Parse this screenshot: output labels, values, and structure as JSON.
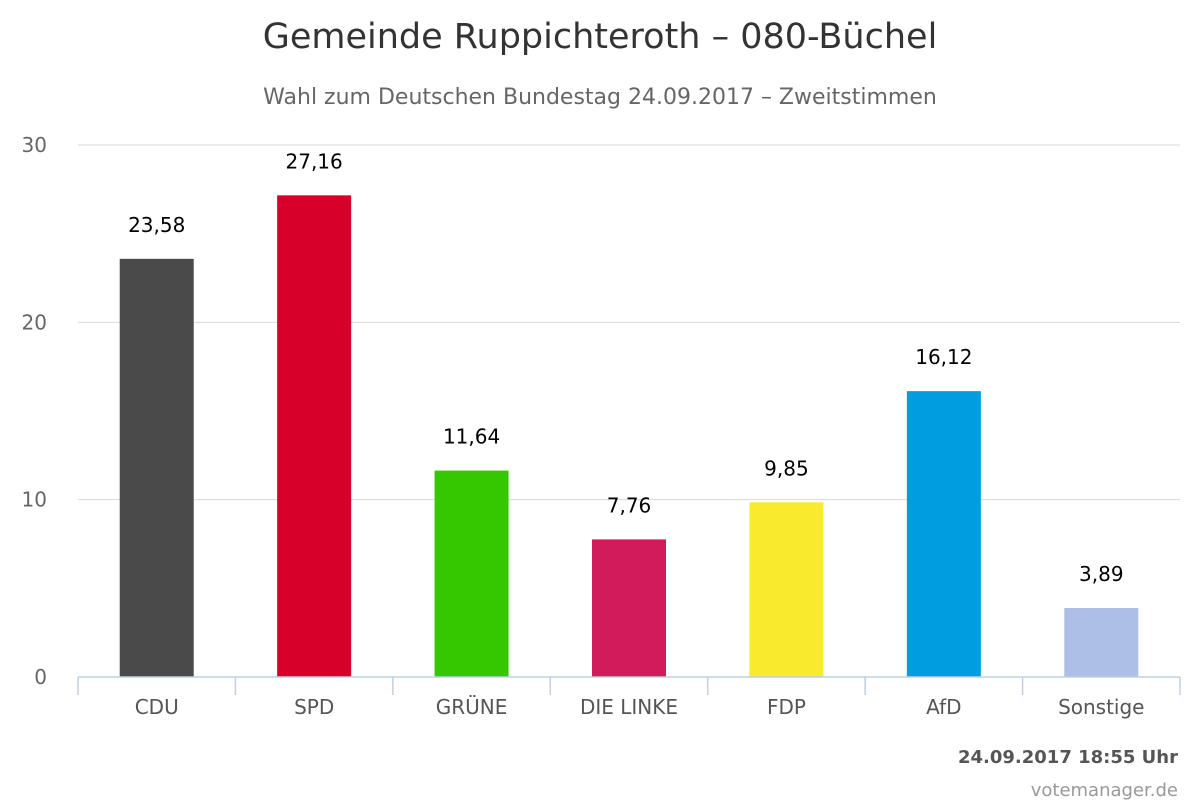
{
  "chart_data": {
    "type": "bar",
    "title": "Gemeinde Ruppichteroth – 080-Büchel",
    "subtitle": "Wahl zum Deutschen Bundestag 24.09.2017 – Zweitstimmen",
    "categories": [
      "CDU",
      "SPD",
      "GRÜNE",
      "DIE LINKE",
      "FDP",
      "AfD",
      "Sonstige"
    ],
    "values": [
      23.58,
      27.16,
      11.64,
      7.76,
      9.85,
      16.12,
      3.89
    ],
    "data_labels": [
      "23,58",
      "27,16",
      "11,64",
      "7,76",
      "9,85",
      "16,12",
      "3,89"
    ],
    "colors": [
      "#4a4a4a",
      "#d7002b",
      "#35c800",
      "#d11b5b",
      "#f8ea2c",
      "#009ee0",
      "#adbfe6"
    ],
    "yticks": [
      "0",
      "10",
      "20",
      "30"
    ],
    "ylim": [
      0,
      30
    ],
    "xlabel": "",
    "ylabel": "",
    "grid": true,
    "legend": "none"
  },
  "footer": {
    "timestamp": "24.09.2017 18:55 Uhr",
    "credit": "votemanager.de"
  }
}
